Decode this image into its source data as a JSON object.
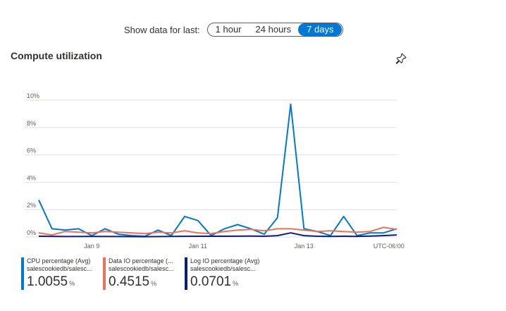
{
  "time_range": {
    "label": "Show data for last:",
    "options": [
      "1 hour",
      "24 hours",
      "7 days"
    ],
    "selected": "7 days"
  },
  "card": {
    "title": "Compute utilization",
    "pin_icon": "pin-icon"
  },
  "legend": [
    {
      "name": "CPU percentage (Avg)",
      "resource": "salescookiedb/salesc...",
      "value": "1.0055",
      "unit": "%",
      "color": "#0078d4"
    },
    {
      "name": "Data IO percentage (...",
      "resource": "salescookiedb/salesc...",
      "value": "0.4515",
      "unit": "%",
      "color": "#e8735a"
    },
    {
      "name": "Log IO percentage (Avg)",
      "resource": "salescookiedb/salesc...",
      "value": "0.0701",
      "unit": "%",
      "color": "#0b1f7a"
    }
  ],
  "chart_data": {
    "type": "line",
    "y_ticks": [
      "0%",
      "2%",
      "4%",
      "6%",
      "8%",
      "10%"
    ],
    "ylim": [
      0,
      10
    ],
    "x_ticks": [
      {
        "label": "Jan 9",
        "x": 2
      },
      {
        "label": "Jan 11",
        "x": 6
      },
      {
        "label": "Jan 13",
        "x": 10
      },
      {
        "label": "UTC-06:00",
        "x": 13.2
      }
    ],
    "grid": true,
    "series": [
      {
        "name": "CPU percentage (Avg)",
        "color": "#0078d4",
        "points": [
          [
            0,
            2.7
          ],
          [
            0.5,
            0.6
          ],
          [
            1,
            0.5
          ],
          [
            1.5,
            0.6
          ],
          [
            2,
            0.1
          ],
          [
            2.5,
            0.6
          ],
          [
            3,
            0.2
          ],
          [
            3.5,
            0.1
          ],
          [
            4,
            0.05
          ],
          [
            4.5,
            0.5
          ],
          [
            5,
            0.1
          ],
          [
            5.5,
            1.5
          ],
          [
            6,
            1.2
          ],
          [
            6.5,
            0.1
          ],
          [
            7,
            0.6
          ],
          [
            7.5,
            0.9
          ],
          [
            8,
            0.6
          ],
          [
            8.5,
            0.2
          ],
          [
            9,
            1.4
          ],
          [
            9.5,
            9.7
          ],
          [
            10,
            0.6
          ],
          [
            10.5,
            0.4
          ],
          [
            11,
            0.1
          ],
          [
            11.5,
            1.5
          ],
          [
            12,
            0.1
          ],
          [
            12.5,
            0.3
          ],
          [
            13,
            0.3
          ],
          [
            13.5,
            0.6
          ]
        ]
      },
      {
        "name": "Data IO percentage (Avg)",
        "color": "#e8735a",
        "points": [
          [
            0,
            0.3
          ],
          [
            0.5,
            0.15
          ],
          [
            1,
            0.4
          ],
          [
            1.5,
            0.35
          ],
          [
            2,
            0.3
          ],
          [
            2.5,
            0.4
          ],
          [
            3,
            0.35
          ],
          [
            3.5,
            0.3
          ],
          [
            4,
            0.25
          ],
          [
            4.5,
            0.35
          ],
          [
            5,
            0.3
          ],
          [
            5.5,
            0.45
          ],
          [
            6,
            0.3
          ],
          [
            6.5,
            0.25
          ],
          [
            7,
            0.4
          ],
          [
            7.5,
            0.5
          ],
          [
            8,
            0.55
          ],
          [
            8.5,
            0.45
          ],
          [
            9,
            0.6
          ],
          [
            9.5,
            0.6
          ],
          [
            10,
            0.5
          ],
          [
            10.5,
            0.4
          ],
          [
            11,
            0.45
          ],
          [
            11.5,
            0.4
          ],
          [
            12,
            0.35
          ],
          [
            12.5,
            0.4
          ],
          [
            13,
            0.7
          ],
          [
            13.5,
            0.55
          ]
        ]
      },
      {
        "name": "Log IO percentage (Avg)",
        "color": "#0b1f7a",
        "points": [
          [
            0,
            0.05
          ],
          [
            1,
            0.03
          ],
          [
            2,
            0.04
          ],
          [
            3,
            0.03
          ],
          [
            4,
            0.02
          ],
          [
            5,
            0.04
          ],
          [
            6,
            0.05
          ],
          [
            7,
            0.05
          ],
          [
            8,
            0.06
          ],
          [
            8.5,
            0.05
          ],
          [
            9,
            0.1
          ],
          [
            9.5,
            0.3
          ],
          [
            10,
            0.1
          ],
          [
            10.5,
            0.05
          ],
          [
            11,
            0.04
          ],
          [
            11.5,
            0.05
          ],
          [
            12,
            0.04
          ],
          [
            12.5,
            0.06
          ],
          [
            13,
            0.1
          ],
          [
            13.5,
            0.15
          ]
        ]
      }
    ]
  }
}
